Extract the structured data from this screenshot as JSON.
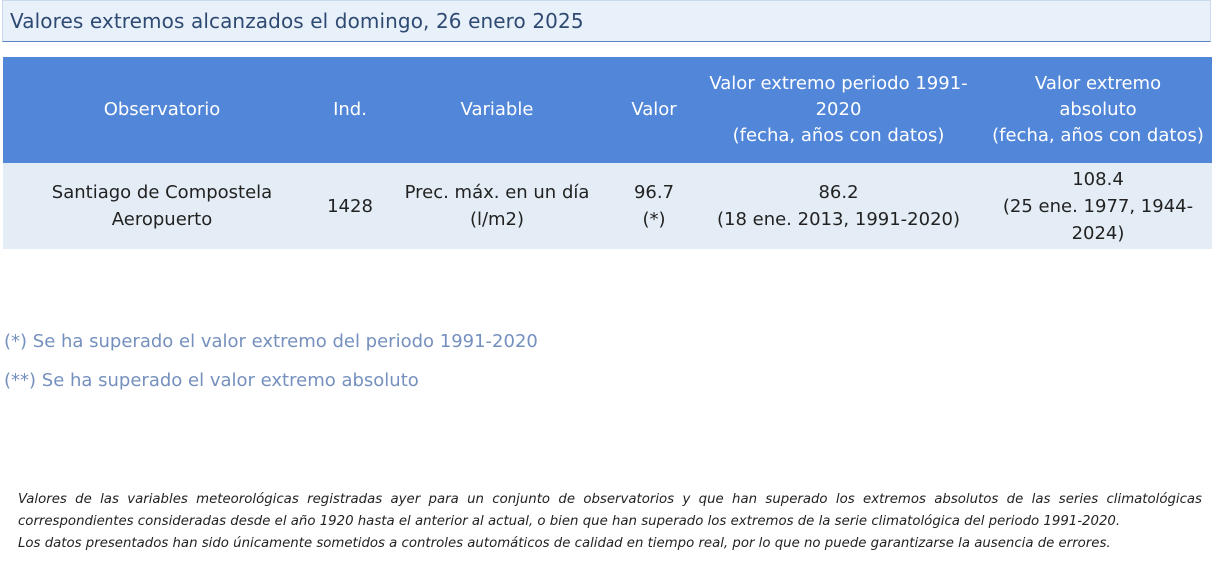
{
  "title": "Valores extremos alcanzados el domingo, 26 enero 2025",
  "table": {
    "headers": {
      "observatorio": "Observatorio",
      "ind": "Ind.",
      "variable": "Variable",
      "valor": "Valor",
      "periodo_line1": "Valor extremo periodo 1991-",
      "periodo_line2": "2020",
      "periodo_line3": "(fecha, años con datos)",
      "absoluto_line1": "Valor extremo",
      "absoluto_line2": "absoluto",
      "absoluto_line3": "(fecha, años con datos)"
    },
    "rows": [
      {
        "observatorio_line1": "Santiago de Compostela",
        "observatorio_line2": "Aeropuerto",
        "ind": "1428",
        "variable_line1": "Prec. máx. en un día",
        "variable_line2": "(l/m2)",
        "valor_line1": "96.7",
        "valor_line2": "(*)",
        "periodo_value": "86.2",
        "periodo_detail": "(18 ene. 2013, 1991-2020)",
        "absoluto_value": "108.4",
        "absoluto_detail_line1": "(25 ene. 1977, 1944-",
        "absoluto_detail_line2": "2024)"
      }
    ]
  },
  "notes": {
    "periodo": "(*) Se ha superado el valor extremo del periodo 1991-2020",
    "absoluto": "(**) Se ha superado el valor extremo absoluto"
  },
  "disclaimer": {
    "paragraph1": "Valores de las variables meteorológicas registradas ayer para un conjunto de observatorios y que han superado los extremos absolutos de las series climatológicas correspondientes consideradas desde el año 1920 hasta el anterior al actual, o bien que han superado los extremos de la serie climatológica del periodo 1991-2020.",
    "paragraph2": "Los datos presentados han sido únicamente sometidos a controles automáticos de calidad en tiempo real, por lo que no puede garantizarse la ausencia de errores."
  },
  "colors": {
    "header_background": "#5186d8",
    "row_background": "#e4edf5",
    "title_background": "#e8f0fa",
    "note_text": "#7590be"
  }
}
